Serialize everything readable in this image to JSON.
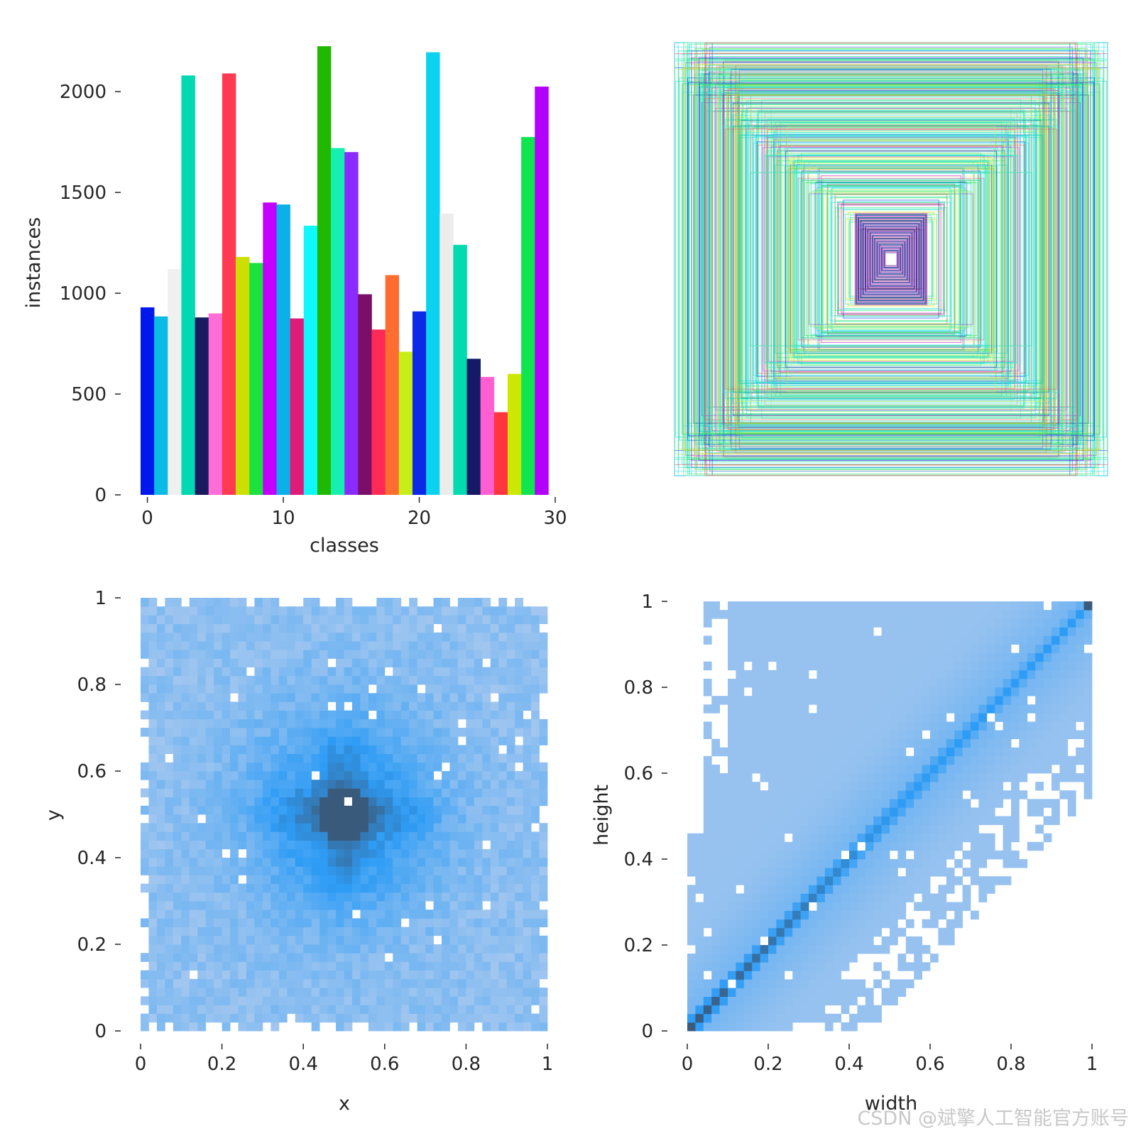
{
  "watermark": "CSDN @斌擎人工智能官方账号",
  "chart_data": [
    {
      "type": "bar",
      "xlabel": "classes",
      "ylabel": "instances",
      "xlim": [
        -0.5,
        30
      ],
      "ylim": [
        0,
        2250
      ],
      "xticks": [
        0,
        10,
        20,
        30
      ],
      "yticks": [
        0,
        500,
        1000,
        1500,
        2000
      ],
      "categories": [
        0,
        1,
        2,
        3,
        4,
        5,
        6,
        7,
        8,
        9,
        10,
        11,
        12,
        13,
        14,
        15,
        16,
        17,
        18,
        19,
        20,
        21,
        22,
        23,
        24,
        25,
        26,
        27,
        28,
        29
      ],
      "values": [
        930,
        885,
        1120,
        2080,
        880,
        900,
        2090,
        1180,
        1150,
        1450,
        1440,
        875,
        1335,
        2225,
        1720,
        1700,
        995,
        820,
        1090,
        710,
        910,
        2195,
        1395,
        1240,
        675,
        585,
        410,
        600,
        1775,
        2025
      ],
      "colors": [
        "#0018ec",
        "#0bbbe6",
        "#f0f0f0",
        "#00d9b2",
        "#1a1a60",
        "#ff6dd6",
        "#ff3a51",
        "#cddf00",
        "#19e33c",
        "#c300ff",
        "#0bafe9",
        "#de1b77",
        "#0ff7ff",
        "#20b800",
        "#15f0b0",
        "#8a2bff",
        "#7a0e68",
        "#ff2a55",
        "#ff6d30",
        "#c8ee1a",
        "#0d28e6",
        "#0bd3ef",
        "#ececec",
        "#00dcb0",
        "#161a66",
        "#ff5fd0",
        "#ff3540",
        "#cce800",
        "#10e550",
        "#b400ff"
      ]
    },
    {
      "type": "boxes",
      "description_colors": [
        "#c300ff",
        "#0018ec",
        "#0bd3ef",
        "#19e33c",
        "#cddf00",
        "#ff3a51",
        "#ff6dd6",
        "#00d9b2",
        "#1a1a60"
      ]
    },
    {
      "type": "heatmap",
      "xlabel": "x",
      "ylabel": "y",
      "xlim": [
        0,
        1
      ],
      "ylim": [
        0,
        1
      ],
      "xticks": [
        0.0,
        0.2,
        0.4,
        0.6,
        0.8,
        1.0
      ],
      "yticks": [
        0.0,
        0.2,
        0.4,
        0.6,
        0.8,
        1.0
      ],
      "peak": [
        0.5,
        0.5
      ],
      "color_low": "#a9c9ef",
      "color_mid": "#2e9cf5",
      "color_high": "#3a5a7c"
    },
    {
      "type": "heatmap",
      "xlabel": "width",
      "ylabel": "height",
      "xlim": [
        0,
        1
      ],
      "ylim": [
        0,
        1
      ],
      "xticks": [
        0.0,
        0.2,
        0.4,
        0.6,
        0.8,
        1.0
      ],
      "yticks": [
        0.0,
        0.2,
        0.4,
        0.6,
        0.8,
        1.0
      ],
      "diagonal_peak": "width = height",
      "color_low": "#a9c9ef",
      "color_mid": "#2e9cf5",
      "color_high": "#3a5a7c"
    }
  ]
}
